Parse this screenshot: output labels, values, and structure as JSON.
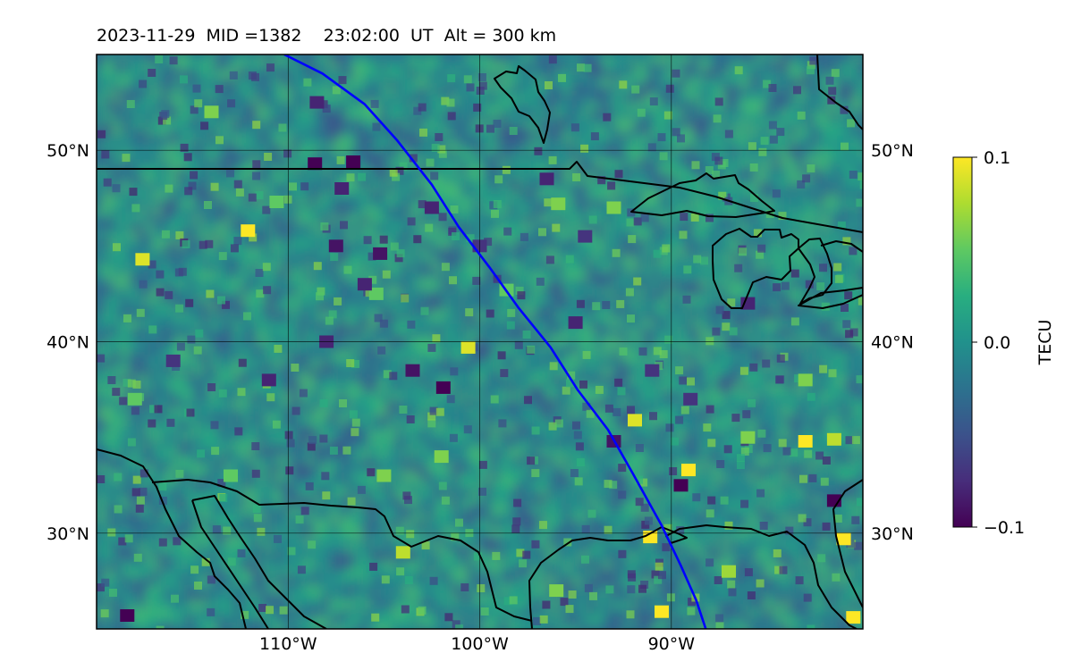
{
  "title": "2023-11-29  MID =1382    23:02:00  UT  Alt = 300 km",
  "chart_data": {
    "type": "heatmap",
    "title": "2023-11-29  MID =1382    23:02:00  UT  Alt = 300 km",
    "projection": "plate-carree",
    "lon_range": [
      -120,
      -80
    ],
    "lat_range": [
      25,
      55
    ],
    "grid": true,
    "x_ticks": [
      -110,
      -100,
      -90
    ],
    "x_tick_labels": [
      "110°W",
      "100°W",
      "90°W"
    ],
    "y_ticks": [
      30,
      40,
      50
    ],
    "y_tick_labels": [
      "30°N",
      "40°N",
      "50°N"
    ],
    "colorbar": {
      "label": "TECU",
      "colormap": "viridis",
      "range": [
        -0.1,
        0.1
      ],
      "ticks": [
        0.1,
        0.0,
        -0.1
      ],
      "tick_labels": [
        "0.1",
        "0.0",
        "−0.1"
      ],
      "position": "right"
    },
    "blue_path": {
      "color": "#0000ff",
      "points": [
        [
          -110.2,
          55
        ],
        [
          -108.2,
          54
        ],
        [
          -106,
          52.4
        ],
        [
          -104.3,
          50.5
        ],
        [
          -102.5,
          48.2
        ],
        [
          -101.1,
          46
        ],
        [
          -99.5,
          43.9
        ],
        [
          -98,
          41.8
        ],
        [
          -96.3,
          39.7
        ],
        [
          -94.9,
          37.5
        ],
        [
          -93.3,
          35.4
        ],
        [
          -92,
          33.1
        ],
        [
          -90.5,
          30.4
        ],
        [
          -89.5,
          28.3
        ],
        [
          -88.7,
          26.5
        ],
        [
          -88.2,
          25
        ]
      ]
    },
    "colored_spots": [
      {
        "lon": -112.1,
        "lat": 45.8,
        "value": 0.1
      },
      {
        "lon": -117.6,
        "lat": 44.3,
        "value": 0.09
      },
      {
        "lon": -110.6,
        "lat": 47.3,
        "value": 0.05
      },
      {
        "lon": -100.6,
        "lat": 39.7,
        "value": 0.09
      },
      {
        "lon": -91.9,
        "lat": 35.9,
        "value": 0.09
      },
      {
        "lon": -89.1,
        "lat": 33.3,
        "value": 0.1
      },
      {
        "lon": -83,
        "lat": 34.8,
        "value": 0.1
      },
      {
        "lon": -81.5,
        "lat": 34.9,
        "value": 0.08
      },
      {
        "lon": -91.1,
        "lat": 29.8,
        "value": 0.1
      },
      {
        "lon": -81,
        "lat": 29.7,
        "value": 0.1
      },
      {
        "lon": -90.5,
        "lat": 25.9,
        "value": 0.1
      },
      {
        "lon": -80.5,
        "lat": 25.6,
        "value": 0.1
      },
      {
        "lon": -104,
        "lat": 29,
        "value": 0.08
      },
      {
        "lon": -95.9,
        "lat": 47.2,
        "value": 0.06
      },
      {
        "lon": -93,
        "lat": 47,
        "value": 0.06
      },
      {
        "lon": -98.6,
        "lat": 42.7,
        "value": 0.05
      },
      {
        "lon": -105.4,
        "lat": 42.5,
        "value": 0.05
      },
      {
        "lon": -106.6,
        "lat": 49.4,
        "value": -0.1
      },
      {
        "lon": -108.6,
        "lat": 49.3,
        "value": -0.1
      },
      {
        "lon": -101.9,
        "lat": 37.6,
        "value": -0.1
      },
      {
        "lon": -106,
        "lat": 43,
        "value": -0.08
      },
      {
        "lon": -105.2,
        "lat": 44.6,
        "value": -0.09
      },
      {
        "lon": -107.5,
        "lat": 45,
        "value": -0.09
      },
      {
        "lon": -102.5,
        "lat": 47,
        "value": -0.08
      },
      {
        "lon": -107.2,
        "lat": 48,
        "value": -0.08
      },
      {
        "lon": -108.5,
        "lat": 52.5,
        "value": -0.08
      },
      {
        "lon": -94.5,
        "lat": 45.5,
        "value": -0.07
      },
      {
        "lon": -89.5,
        "lat": 32.5,
        "value": -0.1
      },
      {
        "lon": -81.5,
        "lat": 31.7,
        "value": -0.1
      },
      {
        "lon": -93,
        "lat": 34.8,
        "value": -0.09
      },
      {
        "lon": -96.5,
        "lat": 48.5,
        "value": -0.08
      },
      {
        "lon": -118.4,
        "lat": 25.7,
        "value": -0.1
      },
      {
        "lon": -100,
        "lat": 45,
        "value": -0.07
      },
      {
        "lon": -111,
        "lat": 38,
        "value": -0.08
      },
      {
        "lon": -108,
        "lat": 40,
        "value": -0.08
      },
      {
        "lon": -103.5,
        "lat": 38.5,
        "value": -0.09
      },
      {
        "lon": -95,
        "lat": 41,
        "value": -0.08
      },
      {
        "lon": -91,
        "lat": 38.5,
        "value": -0.07
      },
      {
        "lon": -86,
        "lat": 42,
        "value": -0.08
      },
      {
        "lon": -89,
        "lat": 37,
        "value": -0.07
      },
      {
        "lon": -116,
        "lat": 39,
        "value": -0.07
      },
      {
        "lon": -114,
        "lat": 52,
        "value": 0.06
      },
      {
        "lon": -118,
        "lat": 37,
        "value": 0.05
      },
      {
        "lon": -83,
        "lat": 38,
        "value": 0.06
      },
      {
        "lon": -86,
        "lat": 35,
        "value": 0.06
      },
      {
        "lon": -102,
        "lat": 34,
        "value": 0.06
      },
      {
        "lon": -96,
        "lat": 27,
        "value": 0.06
      },
      {
        "lon": -87,
        "lat": 28,
        "value": 0.07
      },
      {
        "lon": -113,
        "lat": 33,
        "value": 0.05
      },
      {
        "lon": -105,
        "lat": 33,
        "value": 0.06
      }
    ]
  }
}
